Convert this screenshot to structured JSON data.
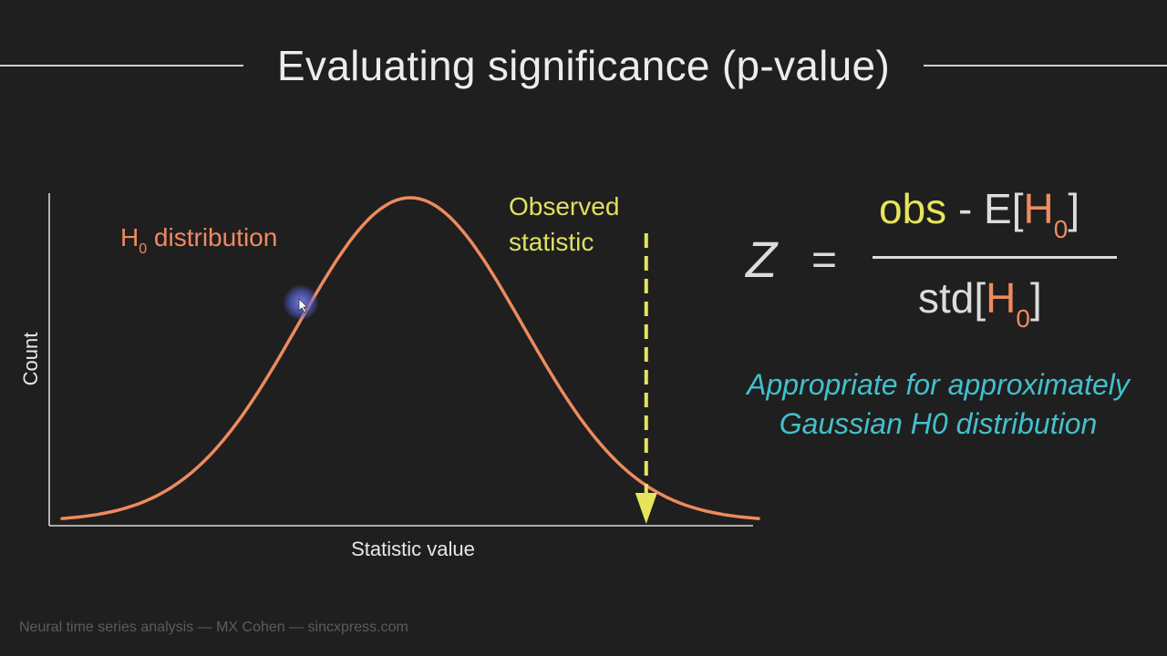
{
  "slide": {
    "title": "Evaluating significance (p-value)",
    "footer": "Neural time series analysis — MX Cohen — sincxpress.com"
  },
  "chart_data": {
    "type": "line",
    "title": "",
    "xlabel": "Statistic value",
    "ylabel": "Count",
    "series": [
      {
        "name": "H0 distribution",
        "label_main": "H",
        "label_sub": "0",
        "label_rest": " distribution",
        "color": "#ef8a5f",
        "mean": 0,
        "sd": 1,
        "x_range": [
          -3.1,
          3.1
        ]
      }
    ],
    "observed_statistic": {
      "label": "Observed\nstatistic",
      "x": 2.1,
      "color": "#e6e45c",
      "style": "dashed-arrow"
    },
    "grid": false
  },
  "formula": {
    "z": "Z",
    "equals": "=",
    "numerator": {
      "obs": "obs",
      "minus": " - E[",
      "h": "H",
      "sub": "0",
      "close": "]"
    },
    "denominator": {
      "std": "std[",
      "h": "H",
      "sub": "0",
      "close": "]"
    }
  },
  "note": "Appropriate for approximately Gaussian H0 distribution",
  "colors": {
    "background": "#1f1f1f",
    "curve": "#ef8a5f",
    "observed": "#e6e45c",
    "note": "#43bfcc",
    "text": "#e8e8e8"
  }
}
